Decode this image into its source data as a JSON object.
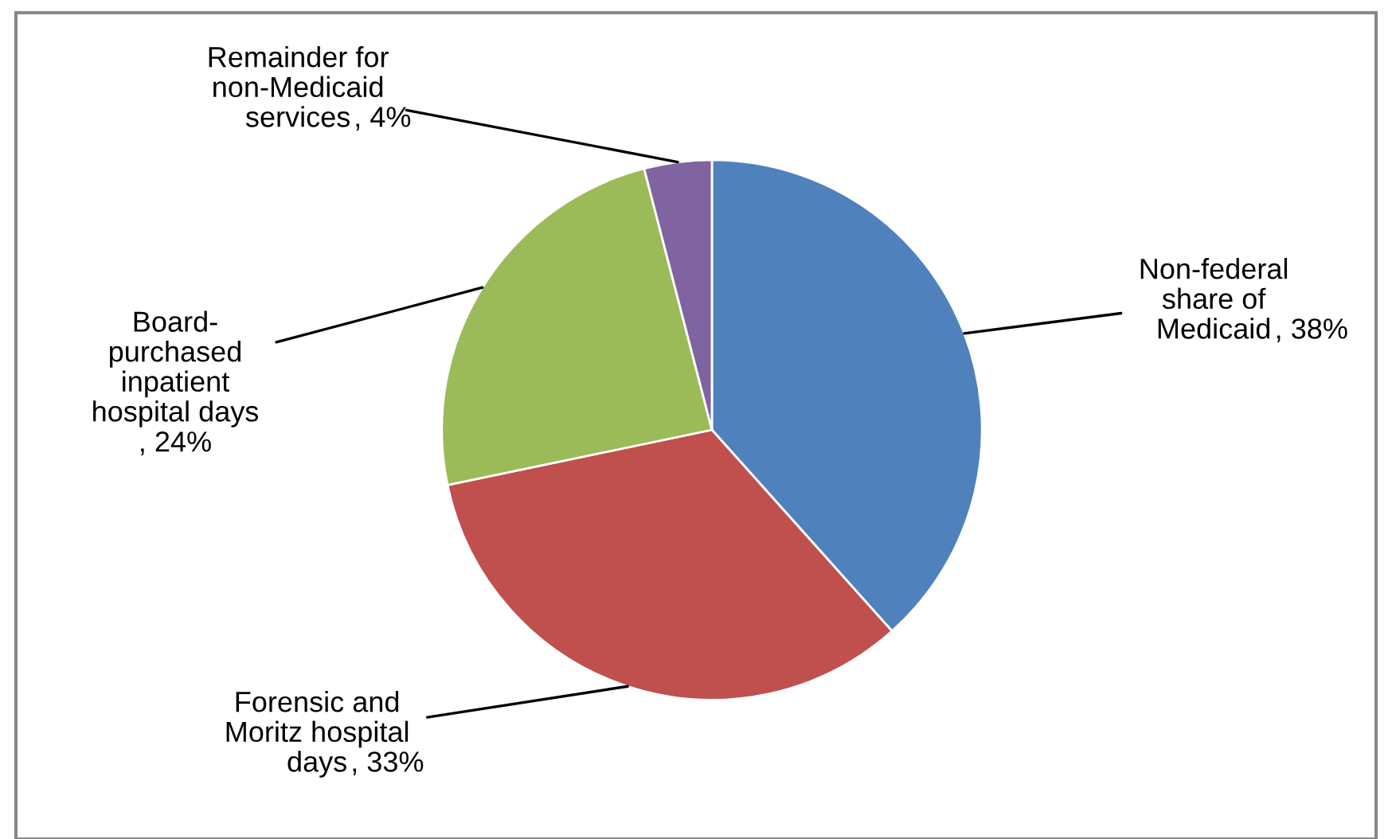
{
  "chart_data": {
    "type": "pie",
    "categories": [
      "Non-federal share of Medicaid",
      "Forensic and Moritz hospital days",
      "Board-purchased inpatient hospital days",
      "Remainder for non-Medicaid services"
    ],
    "values": [
      38,
      33,
      24,
      4
    ],
    "value_labels": [
      ", 38%",
      ", 33%",
      ", 24%",
      ", 4%"
    ],
    "colors": [
      "#4f81bd",
      "#c0504d",
      "#9bbb59",
      "#8064a2"
    ],
    "legend": false
  }
}
